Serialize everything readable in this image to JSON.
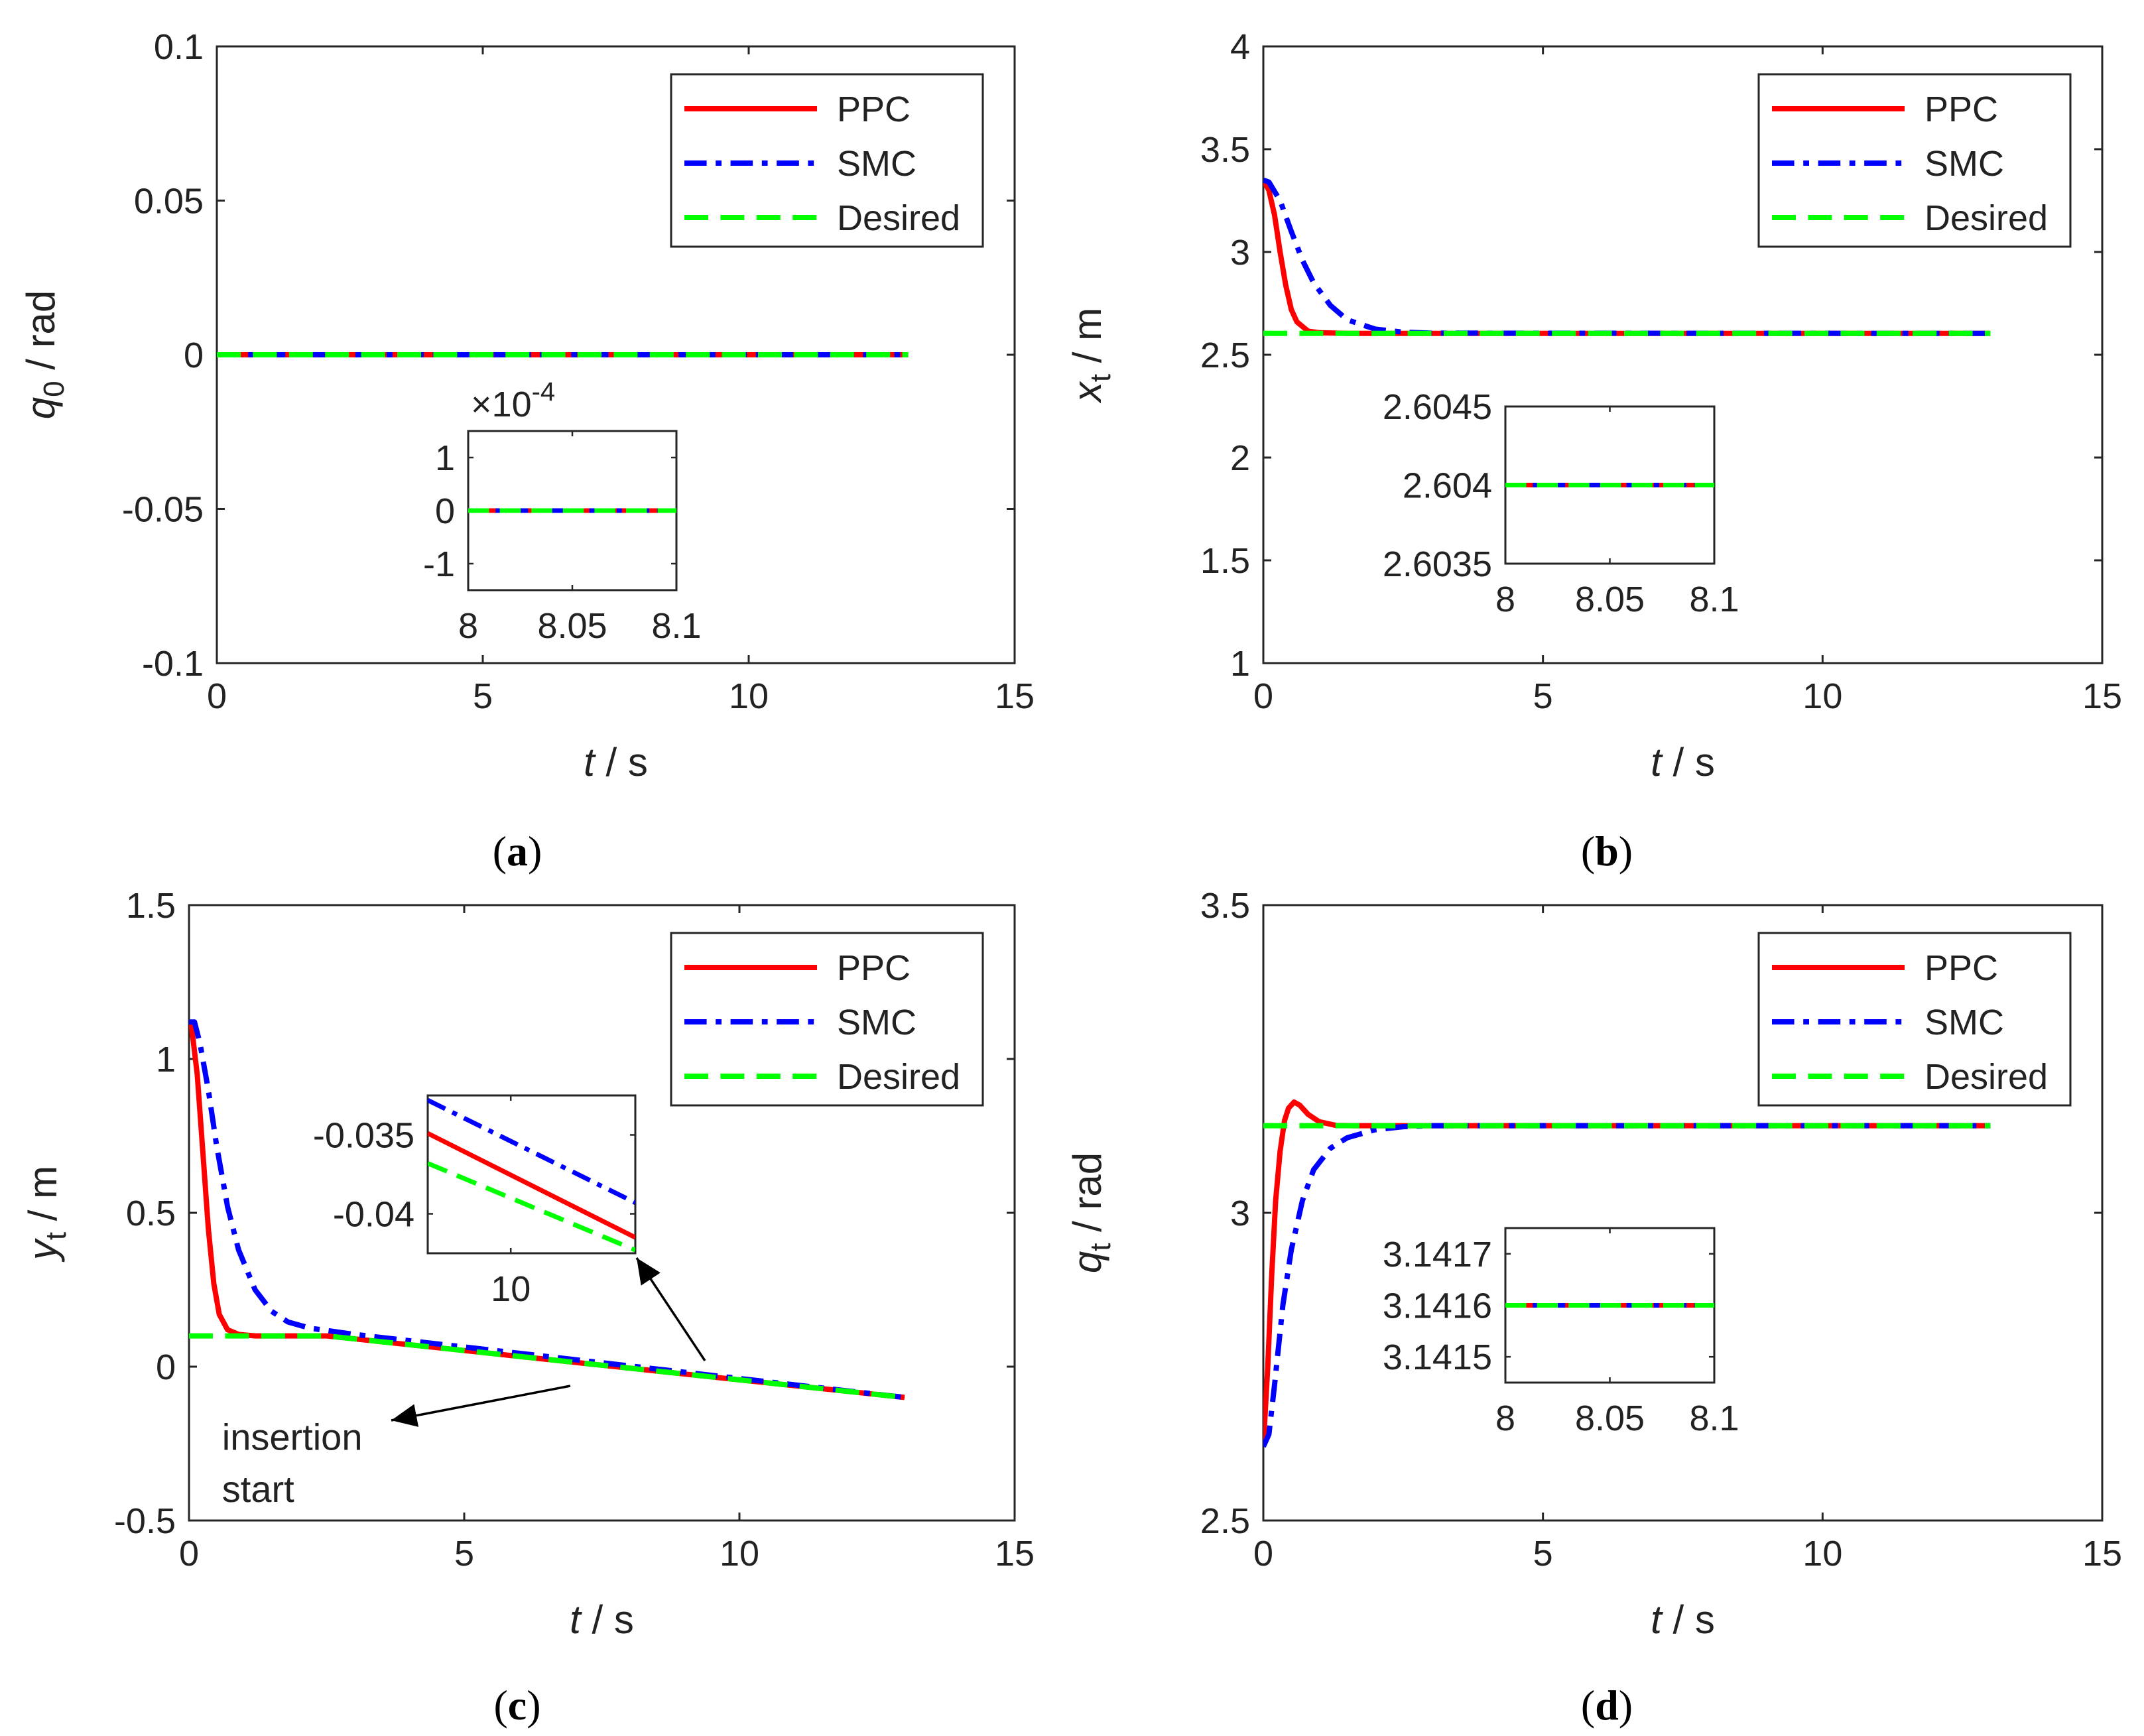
{
  "figure": {
    "series_legend": [
      {
        "name": "PPC",
        "color": "#ff0000",
        "style": "solid"
      },
      {
        "name": "SMC",
        "color": "#0000ff",
        "style": "dashdot"
      },
      {
        "name": "Desired",
        "color": "#00ff00",
        "style": "dashed"
      }
    ]
  },
  "chart_data": [
    {
      "id": "a",
      "caption": "(a)",
      "type": "line",
      "title": "",
      "xlabel": "t / s",
      "ylabel": "q_0 / rad",
      "ylabel_main": "q",
      "ylabel_sub": "0",
      "ylabel_unit": " / rad",
      "xlim": [
        0,
        15
      ],
      "ylim": [
        -0.1,
        0.1
      ],
      "xticks": [
        0,
        5,
        10,
        15
      ],
      "xtick_labels": [
        "0",
        "5",
        "10",
        "15"
      ],
      "yticks": [
        -0.1,
        -0.05,
        0,
        0.05,
        0.1
      ],
      "ytick_labels": [
        "-0.1",
        "-0.05",
        "0",
        "0.05",
        "0.1"
      ],
      "legend": [
        "PPC",
        "SMC",
        "Desired"
      ],
      "legend_position": "top-right",
      "series": [
        {
          "name": "PPC",
          "x": [
            0,
            13
          ],
          "y": [
            0,
            0
          ]
        },
        {
          "name": "SMC",
          "x": [
            0,
            13
          ],
          "y": [
            0,
            0
          ]
        },
        {
          "name": "Desired",
          "x": [
            0,
            13
          ],
          "y": [
            0,
            0
          ]
        }
      ],
      "inset": {
        "xlim": [
          8,
          8.1
        ],
        "ylim": [
          -0.00015,
          0.00015
        ],
        "xticks": [
          8,
          8.05,
          8.1
        ],
        "xtick_labels": [
          "8",
          "8.05",
          "8.1"
        ],
        "yticks": [
          -0.0001,
          0,
          0.0001
        ],
        "ytick_labels": [
          "-1",
          "0",
          "1"
        ],
        "exponent_label": "×10",
        "exponent_power": "-4",
        "series": [
          {
            "name": "PPC",
            "x": [
              8,
              8.1
            ],
            "y": [
              0,
              0
            ]
          },
          {
            "name": "SMC",
            "x": [
              8,
              8.1
            ],
            "y": [
              0,
              0
            ]
          },
          {
            "name": "Desired",
            "x": [
              8,
              8.1
            ],
            "y": [
              0,
              0
            ]
          }
        ]
      }
    },
    {
      "id": "b",
      "caption": "(b)",
      "type": "line",
      "title": "",
      "xlabel": "t / s",
      "ylabel": "x_t / m",
      "ylabel_main": "x",
      "ylabel_sub": "t",
      "ylabel_unit": " / m",
      "xlim": [
        0,
        15
      ],
      "ylim": [
        1,
        4
      ],
      "xticks": [
        0,
        5,
        10,
        15
      ],
      "xtick_labels": [
        "0",
        "5",
        "10",
        "15"
      ],
      "yticks": [
        1,
        1.5,
        2,
        2.5,
        3,
        3.5,
        4
      ],
      "ytick_labels": [
        "1",
        "1.5",
        "2",
        "2.5",
        "3",
        "3.5",
        "4"
      ],
      "legend": [
        "PPC",
        "SMC",
        "Desired"
      ],
      "legend_position": "top-right",
      "series": [
        {
          "name": "PPC",
          "x": [
            0,
            0.1,
            0.2,
            0.3,
            0.4,
            0.5,
            0.6,
            0.8,
            1.0,
            1.5,
            2,
            13
          ],
          "y": [
            3.35,
            3.3,
            3.18,
            3.0,
            2.84,
            2.72,
            2.66,
            2.615,
            2.607,
            2.604,
            2.604,
            2.604
          ]
        },
        {
          "name": "SMC",
          "x": [
            0,
            0.1,
            0.3,
            0.5,
            0.7,
            0.9,
            1.2,
            1.5,
            2.0,
            2.5,
            3.0,
            13
          ],
          "y": [
            3.35,
            3.34,
            3.25,
            3.1,
            2.96,
            2.85,
            2.74,
            2.67,
            2.625,
            2.61,
            2.605,
            2.604
          ]
        },
        {
          "name": "Desired",
          "x": [
            0,
            13
          ],
          "y": [
            2.604,
            2.604
          ]
        }
      ],
      "inset": {
        "xlim": [
          8,
          8.1
        ],
        "ylim": [
          2.6035,
          2.6045
        ],
        "xticks": [
          8,
          8.05,
          8.1
        ],
        "xtick_labels": [
          "8",
          "8.05",
          "8.1"
        ],
        "yticks": [
          2.6035,
          2.604,
          2.6045
        ],
        "ytick_labels": [
          "2.6035",
          "2.604",
          "2.6045"
        ],
        "series": [
          {
            "name": "PPC",
            "x": [
              8,
              8.1
            ],
            "y": [
              2.604,
              2.604
            ]
          },
          {
            "name": "SMC",
            "x": [
              8,
              8.1
            ],
            "y": [
              2.604,
              2.604
            ]
          },
          {
            "name": "Desired",
            "x": [
              8,
              8.1
            ],
            "y": [
              2.604,
              2.604
            ]
          }
        ]
      }
    },
    {
      "id": "c",
      "caption": "(c)",
      "type": "line",
      "title": "",
      "xlabel": "t / s",
      "ylabel": "y_t / m",
      "ylabel_main": "y",
      "ylabel_sub": "t",
      "ylabel_unit": " / m",
      "xlim": [
        0,
        15
      ],
      "ylim": [
        -0.5,
        1.5
      ],
      "xticks": [
        0,
        5,
        10,
        15
      ],
      "xtick_labels": [
        "0",
        "5",
        "10",
        "15"
      ],
      "yticks": [
        -0.5,
        0,
        0.5,
        1,
        1.5
      ],
      "ytick_labels": [
        "-0.5",
        "0",
        "0.5",
        "1",
        "1.5"
      ],
      "legend": [
        "PPC",
        "SMC",
        "Desired"
      ],
      "legend_position": "top-right",
      "annotations": [
        {
          "text": "insertion",
          "x": 0.6,
          "y": -0.27
        },
        {
          "text": "start",
          "x": 0.6,
          "y": -0.44
        }
      ],
      "series": [
        {
          "name": "PPC",
          "x": [
            0,
            0.05,
            0.15,
            0.25,
            0.35,
            0.45,
            0.55,
            0.7,
            0.9,
            1.2,
            2,
            2.5,
            13
          ],
          "y": [
            1.12,
            1.1,
            0.95,
            0.7,
            0.45,
            0.27,
            0.17,
            0.12,
            0.105,
            0.1,
            0.1,
            0.1,
            -0.1
          ]
        },
        {
          "name": "SMC",
          "x": [
            0,
            0.1,
            0.2,
            0.35,
            0.5,
            0.7,
            0.9,
            1.2,
            1.5,
            1.8,
            2.2,
            2.6,
            3.0,
            13
          ],
          "y": [
            1.12,
            1.12,
            1.05,
            0.9,
            0.72,
            0.52,
            0.38,
            0.25,
            0.18,
            0.145,
            0.125,
            0.115,
            0.105,
            -0.1
          ]
        },
        {
          "name": "Desired",
          "x": [
            0,
            2.5,
            13
          ],
          "y": [
            0.1,
            0.1,
            -0.1
          ]
        }
      ],
      "inset": {
        "xlim": [
          9.8,
          10.3
        ],
        "ylim": [
          -0.0425,
          -0.0325
        ],
        "xticks": [
          10
        ],
        "xtick_labels": [
          "10"
        ],
        "yticks": [
          -0.04,
          -0.035
        ],
        "ytick_labels": [
          "-0.04",
          "-0.035"
        ],
        "series": [
          {
            "name": "PPC",
            "x": [
              9.8,
              10.3
            ],
            "y": [
              -0.0349,
              -0.0415
            ]
          },
          {
            "name": "SMC",
            "x": [
              9.8,
              10.3
            ],
            "y": [
              -0.0328,
              -0.0393
            ]
          },
          {
            "name": "Desired",
            "x": [
              9.8,
              10.3
            ],
            "y": [
              -0.0368,
              -0.0423
            ]
          }
        ]
      }
    },
    {
      "id": "d",
      "caption": "(d)",
      "type": "line",
      "title": "",
      "xlabel": "t / s",
      "ylabel": "q_t / rad",
      "ylabel_main": "q",
      "ylabel_sub": "t",
      "ylabel_unit": " / rad",
      "xlim": [
        0,
        15
      ],
      "ylim": [
        2.5,
        3.5
      ],
      "xticks": [
        0,
        5,
        10,
        15
      ],
      "xtick_labels": [
        "0",
        "5",
        "10",
        "15"
      ],
      "yticks": [
        2.5,
        3,
        3.5
      ],
      "ytick_labels": [
        "2.5",
        "3",
        "3.5"
      ],
      "legend": [
        "PPC",
        "SMC",
        "Desired"
      ],
      "legend_position": "top-right",
      "series": [
        {
          "name": "PPC",
          "x": [
            0,
            0.08,
            0.15,
            0.22,
            0.3,
            0.38,
            0.45,
            0.55,
            0.65,
            0.8,
            1.0,
            1.3,
            1.6,
            13
          ],
          "y": [
            2.62,
            2.75,
            2.9,
            3.02,
            3.1,
            3.15,
            3.17,
            3.18,
            3.175,
            3.16,
            3.148,
            3.142,
            3.1416,
            3.1416
          ]
        },
        {
          "name": "SMC",
          "x": [
            0,
            0.1,
            0.2,
            0.35,
            0.5,
            0.7,
            0.9,
            1.2,
            1.5,
            2.0,
            2.5,
            3.0,
            13
          ],
          "y": [
            2.62,
            2.64,
            2.72,
            2.85,
            2.94,
            3.02,
            3.07,
            3.105,
            3.122,
            3.135,
            3.14,
            3.1416,
            3.1416
          ]
        },
        {
          "name": "Desired",
          "x": [
            0,
            13
          ],
          "y": [
            3.1416,
            3.1416
          ]
        }
      ],
      "inset": {
        "xlim": [
          8,
          8.1
        ],
        "ylim": [
          3.14145,
          3.14175
        ],
        "xticks": [
          8,
          8.05,
          8.1
        ],
        "xtick_labels": [
          "8",
          "8.05",
          "8.1"
        ],
        "yticks": [
          3.1415,
          3.1416,
          3.1417
        ],
        "ytick_labels": [
          "3.1415",
          "3.1416",
          "3.1417"
        ],
        "series": [
          {
            "name": "PPC",
            "x": [
              8,
              8.1
            ],
            "y": [
              3.1416,
              3.1416
            ]
          },
          {
            "name": "SMC",
            "x": [
              8,
              8.1
            ],
            "y": [
              3.1416,
              3.1416
            ]
          },
          {
            "name": "Desired",
            "x": [
              8,
              8.1
            ],
            "y": [
              3.1416,
              3.1416
            ]
          }
        ]
      }
    }
  ]
}
